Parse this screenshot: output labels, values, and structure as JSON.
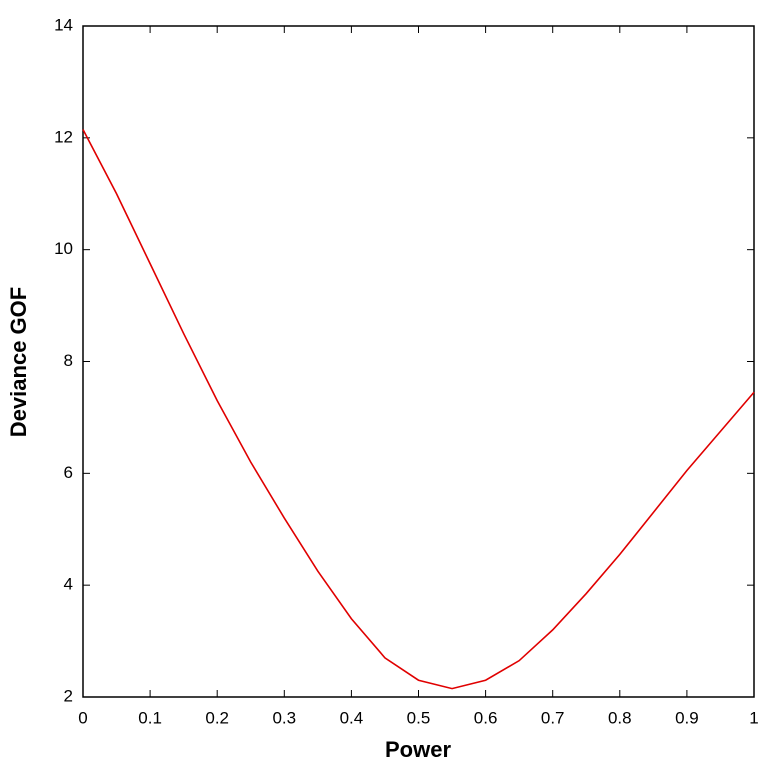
{
  "chart_data": {
    "type": "line",
    "xlabel": "Power",
    "ylabel": "Deviance GOF",
    "x": [
      0,
      0.05,
      0.1,
      0.15,
      0.2,
      0.25,
      0.3,
      0.35,
      0.4,
      0.45,
      0.5,
      0.55,
      0.6,
      0.65,
      0.7,
      0.75,
      0.8,
      0.85,
      0.9,
      0.95,
      1
    ],
    "series": [
      {
        "color": "#e00000",
        "values": [
          12.15,
          11.0,
          9.75,
          8.5,
          7.3,
          6.2,
          5.2,
          4.25,
          3.4,
          2.7,
          2.3,
          2.15,
          2.3,
          2.65,
          3.2,
          3.85,
          4.55,
          5.3,
          6.05,
          6.75,
          7.45
        ]
      }
    ],
    "xlim": [
      0,
      1
    ],
    "xticks": [
      0,
      0.1,
      0.2,
      0.3,
      0.4,
      0.5,
      0.6,
      0.7,
      0.8,
      0.9,
      1
    ],
    "ylim": [
      2,
      14
    ],
    "yticks": [
      2,
      4,
      6,
      8,
      10,
      12,
      14
    ],
    "grid": false
  }
}
